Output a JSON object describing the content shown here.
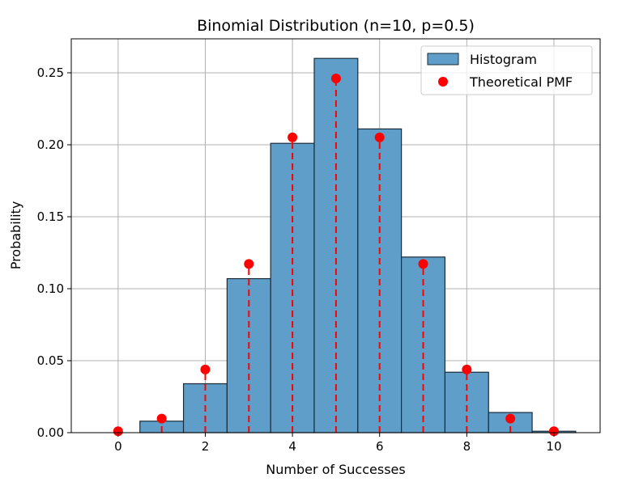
{
  "chart_data": {
    "type": "bar",
    "title": "Binomial Distribution (n=10, p=0.5)",
    "xlabel": "Number of Successes",
    "ylabel": "Probability",
    "xlim": [
      -1.075,
      11.06
    ],
    "ylim": [
      0,
      0.2736
    ],
    "xticks": [
      0,
      2,
      4,
      6,
      8,
      10
    ],
    "xtick_labels": [
      "0",
      "2",
      "4",
      "6",
      "8",
      "10"
    ],
    "yticks": [
      0,
      0.05,
      0.1,
      0.15,
      0.2,
      0.25
    ],
    "ytick_labels": [
      "0.00",
      "0.05",
      "0.10",
      "0.15",
      "0.20",
      "0.25"
    ],
    "grid": true,
    "legend_position": "top-right",
    "x": [
      0,
      1,
      2,
      3,
      4,
      5,
      6,
      7,
      8,
      9,
      10
    ],
    "series": [
      {
        "name": "Histogram",
        "type": "bar",
        "color": "#5f9ec9",
        "values": [
          0,
          0.008,
          0.034,
          0.107,
          0.201,
          0.26,
          0.211,
          0.122,
          0.042,
          0.014,
          0.001
        ]
      },
      {
        "name": "Theoretical PMF",
        "type": "scatter",
        "color": "#ff0000",
        "values": [
          0.00098,
          0.00977,
          0.0439,
          0.1172,
          0.2051,
          0.2461,
          0.2051,
          0.1172,
          0.0439,
          0.00977,
          0.00098
        ]
      }
    ]
  }
}
